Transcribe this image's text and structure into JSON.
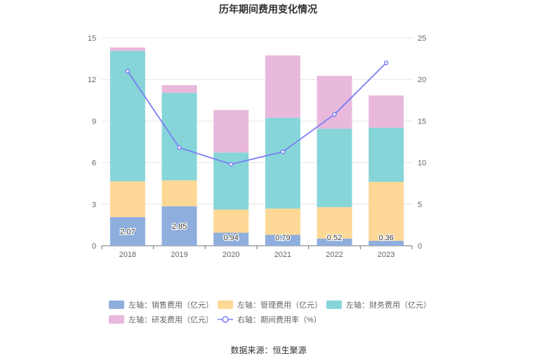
{
  "chart_data": {
    "type": "bar",
    "title": "历年期间费用变化情况",
    "categories": [
      "2018",
      "2019",
      "2020",
      "2021",
      "2022",
      "2023"
    ],
    "y_left_ticks": [
      "0",
      "3",
      "6",
      "9",
      "12",
      "15"
    ],
    "y_right_ticks": [
      "0",
      "5",
      "10",
      "15",
      "20",
      "25"
    ],
    "ylim_left": [
      0,
      15
    ],
    "ylim_right": [
      0,
      25
    ],
    "series": [
      {
        "name": "左轴：销售费用（亿元）",
        "color": "#8eaedd",
        "values": [
          2.07,
          2.85,
          0.94,
          0.79,
          0.52,
          0.36
        ],
        "labels": [
          "2.07",
          "2.85",
          "0.94",
          "0.79",
          "0.52",
          "0.36"
        ]
      },
      {
        "name": "左轴：管理费用（亿元）",
        "color": "#fdd896",
        "values": [
          2.58,
          1.87,
          1.67,
          1.89,
          2.27,
          4.25
        ]
      },
      {
        "name": "左轴：财务费用（亿元）",
        "color": "#86d5d8",
        "values": [
          9.41,
          6.32,
          4.12,
          6.56,
          5.66,
          3.91
        ]
      },
      {
        "name": "左轴：研发费用（亿元）",
        "color": "#e8b9dc",
        "values": [
          0.25,
          0.55,
          3.07,
          4.5,
          3.81,
          2.33
        ]
      }
    ],
    "line": {
      "name": "右轴：期间费用率（%）",
      "color": "#7b7cf4",
      "values": [
        21.0,
        11.8,
        9.8,
        11.3,
        15.8,
        22.0
      ]
    },
    "source": "数据来源：恒生聚源"
  }
}
